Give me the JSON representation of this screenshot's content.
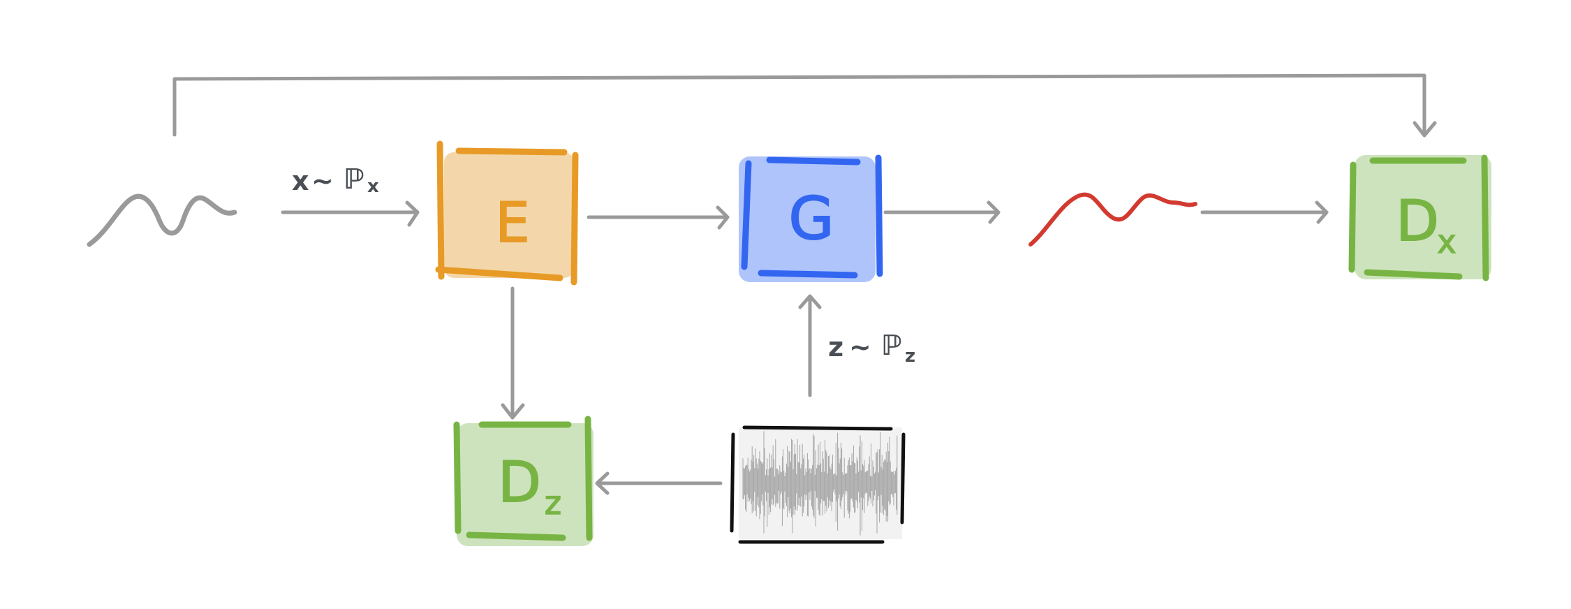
{
  "colors": {
    "arrow": "#9a9a9a",
    "orange_fill": "#f3d7aa",
    "orange_stroke": "#e89a26",
    "blue_fill": "#aec4fb",
    "blue_stroke": "#3366f0",
    "green_fill": "#cde3bd",
    "green_stroke": "#78b444",
    "red_signal": "#d23a30",
    "label": "#4a4f55"
  },
  "blocks": {
    "encoder": {
      "letter": "E"
    },
    "generator": {
      "letter": "G"
    },
    "disc_z": {
      "letter": "D",
      "subscript": "z"
    },
    "disc_x": {
      "letter": "D",
      "subscript": "x"
    }
  },
  "labels": {
    "x_dist": {
      "var": "x",
      "tilde": "~",
      "dist": "ℙ",
      "sub": "x"
    },
    "z_dist": {
      "var": "z",
      "tilde": "~",
      "dist": "ℙ",
      "sub": "z"
    }
  },
  "icons": {
    "input_signal": "gray-wave-icon",
    "output_signal": "red-wave-icon",
    "noise": "noise-box-icon"
  }
}
